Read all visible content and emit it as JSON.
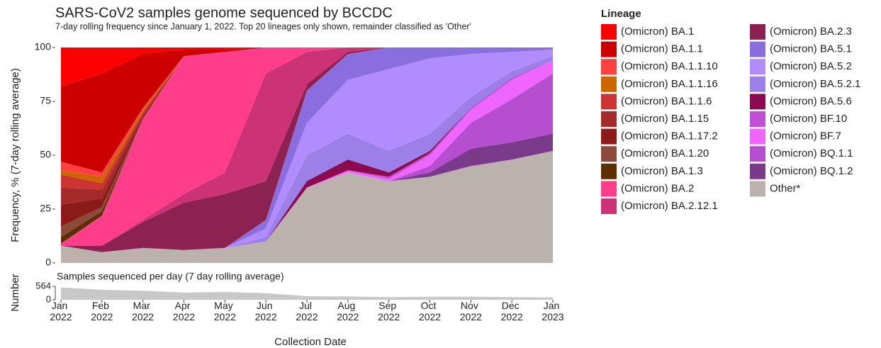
{
  "chart_data": [
    {
      "type": "stacked-area",
      "title": "SARS-CoV2 samples genome sequenced by BCCDC",
      "subtitle": "7-day rolling frequency since January 1, 2022.  Top 20 lineages only shown, remainder classified as 'Other'",
      "y_label": "Frequency, % (7-day rolling average)",
      "legend_title": "Lineage",
      "x": [
        "Jan 2022",
        "Feb 2022",
        "Mar 2022",
        "Apr 2022",
        "May 2022",
        "Jun 2022",
        "Jul 2022",
        "Aug 2022",
        "Sep 2022",
        "Oct 2022",
        "Nov 2022",
        "Dec 2022",
        "Jan 2023"
      ],
      "ylim": [
        0,
        100
      ],
      "yticks": [
        0,
        25,
        50,
        75,
        100
      ],
      "grid": false,
      "series": [
        {
          "name": "(Omicron) BA.1",
          "color": "#ff0000",
          "values": [
            18,
            12,
            3,
            1,
            1,
            0,
            0,
            0,
            0,
            0,
            0,
            0,
            0
          ]
        },
        {
          "name": "(Omicron) BA.1.1",
          "color": "#cc0000",
          "values": [
            35,
            46,
            25,
            3,
            1,
            0,
            0,
            0,
            0,
            0,
            0,
            0,
            0
          ]
        },
        {
          "name": "(Omicron) BA.1.1.10",
          "color": "#ff4040",
          "values": [
            4,
            2,
            1,
            0,
            0,
            0,
            0,
            0,
            0,
            0,
            0,
            0,
            0
          ]
        },
        {
          "name": "(Omicron) BA.1.1.16",
          "color": "#cc6600",
          "values": [
            2,
            3,
            1,
            0,
            0,
            0,
            0,
            0,
            0,
            0,
            0,
            0,
            0
          ]
        },
        {
          "name": "(Omicron) BA.1.1.6",
          "color": "#cc3333",
          "values": [
            6,
            3,
            1,
            0,
            0,
            0,
            0,
            0,
            0,
            0,
            0,
            0,
            0
          ]
        },
        {
          "name": "(Omicron) BA.1.15",
          "color": "#a52a2a",
          "values": [
            8,
            4,
            1,
            0,
            0,
            0,
            0,
            0,
            0,
            0,
            0,
            0,
            0
          ]
        },
        {
          "name": "(Omicron) BA.1.17.2",
          "color": "#8b1a1a",
          "values": [
            10,
            4,
            1,
            0,
            0,
            0,
            0,
            0,
            0,
            0,
            0,
            0,
            0
          ]
        },
        {
          "name": "(Omicron) BA.1.20",
          "color": "#8b4a3a",
          "values": [
            5,
            2,
            0,
            0,
            0,
            0,
            0,
            0,
            0,
            0,
            0,
            0,
            0
          ]
        },
        {
          "name": "(Omicron) BA.1.3",
          "color": "#5c2e00",
          "values": [
            3,
            2,
            0,
            0,
            0,
            0,
            0,
            0,
            0,
            0,
            0,
            0,
            0
          ]
        },
        {
          "name": "(Omicron) BA.2",
          "color": "#ff3d8b",
          "values": [
            1,
            14,
            47,
            64,
            56,
            12,
            2,
            0,
            0,
            0,
            0,
            0,
            0
          ]
        },
        {
          "name": "(Omicron) BA.2.12.1",
          "color": "#cc3377",
          "values": [
            0,
            0,
            1,
            4,
            10,
            50,
            15,
            2,
            0,
            0,
            0,
            0,
            0
          ]
        },
        {
          "name": "(Omicron) BA.2.3",
          "color": "#8b2252",
          "values": [
            0,
            3,
            12,
            22,
            25,
            18,
            3,
            1,
            0,
            0,
            0,
            0,
            0
          ]
        },
        {
          "name": "(Omicron) BA.5.1",
          "color": "#8a6ee0",
          "values": [
            0,
            0,
            0,
            0,
            0,
            4,
            15,
            12,
            10,
            5,
            3,
            2,
            1
          ]
        },
        {
          "name": "(Omicron) BA.5.2",
          "color": "#b08cff",
          "values": [
            0,
            0,
            0,
            0,
            0,
            4,
            15,
            25,
            38,
            35,
            20,
            9,
            3
          ]
        },
        {
          "name": "(Omicron) BA.5.2.1",
          "color": "#9d7fe8",
          "values": [
            0,
            0,
            0,
            0,
            0,
            2,
            12,
            12,
            10,
            8,
            5,
            3,
            2
          ]
        },
        {
          "name": "(Omicron) BA.5.6",
          "color": "#8b0a50",
          "values": [
            0,
            0,
            0,
            0,
            0,
            0,
            3,
            5,
            2,
            1,
            0,
            0,
            0
          ]
        },
        {
          "name": "(Omicron) BF.10",
          "color": "#c04fd6",
          "values": [
            0,
            0,
            0,
            0,
            0,
            0,
            0,
            0,
            1,
            1,
            1,
            1,
            0
          ]
        },
        {
          "name": "(Omicron) BF.7",
          "color": "#ee66ff",
          "values": [
            0,
            0,
            0,
            0,
            0,
            0,
            0,
            1,
            1,
            5,
            6,
            9,
            6
          ]
        },
        {
          "name": "(Omicron) BQ.1.1",
          "color": "#b54fcf",
          "values": [
            0,
            0,
            0,
            0,
            0,
            0,
            0,
            0,
            0,
            3,
            12,
            20,
            28
          ]
        },
        {
          "name": "(Omicron) BQ.1.2",
          "color": "#7a3a8a",
          "values": [
            0,
            0,
            0,
            0,
            0,
            0,
            0,
            0,
            0,
            2,
            8,
            8,
            8
          ]
        },
        {
          "name": "Other*",
          "color": "#bbb2ad",
          "values": [
            8,
            5,
            7,
            6,
            7,
            10,
            35,
            42,
            38,
            40,
            45,
            48,
            52
          ]
        }
      ]
    },
    {
      "type": "area",
      "title": "Samples sequenced per day (7 day rolling average)",
      "y_label": "Number",
      "x_label": "Collection Date",
      "x": [
        "Jan 2022",
        "Feb 2022",
        "Mar 2022",
        "Apr 2022",
        "May 2022",
        "Jun 2022",
        "Jul 2022",
        "Aug 2022",
        "Sep 2022",
        "Oct 2022",
        "Nov 2022",
        "Dec 2022",
        "Jan 2023"
      ],
      "values": [
        520,
        420,
        380,
        300,
        330,
        280,
        150,
        140,
        110,
        130,
        130,
        110,
        100
      ],
      "color": "#c8c8c8",
      "ylim": [
        0,
        564
      ],
      "yticks": [
        0,
        564
      ]
    }
  ]
}
